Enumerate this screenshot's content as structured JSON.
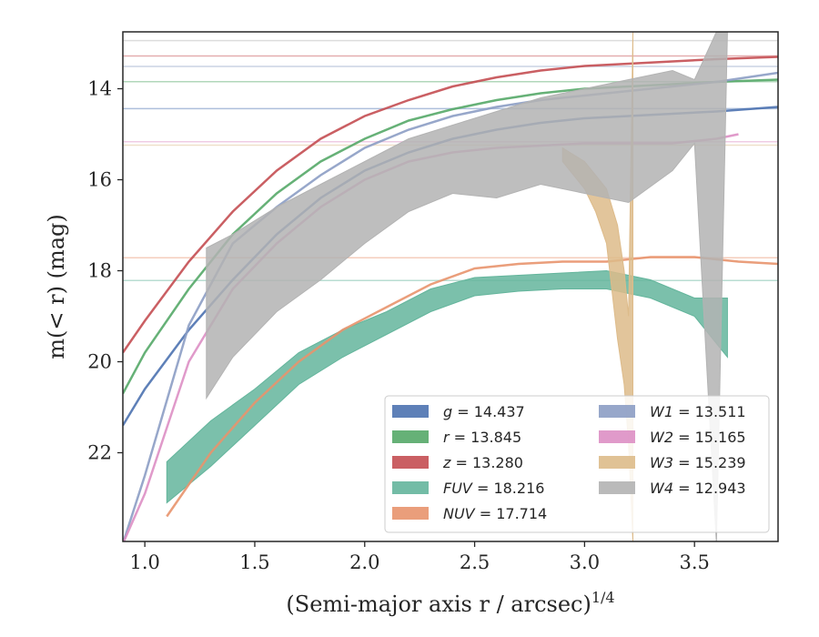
{
  "chart_data": {
    "type": "line",
    "title": "",
    "xlabel": "(Semi-major axis r / arcsec)",
    "xlabel_sup": "1/4",
    "ylabel": "m(< r) (mag)",
    "xlim": [
      0.9,
      3.88
    ],
    "ylim": [
      23.95,
      12.75
    ],
    "y_inverted": true,
    "xticks": [
      1.0,
      1.5,
      2.0,
      2.5,
      3.0,
      3.5
    ],
    "xtick_labels": [
      "1.0",
      "1.5",
      "2.0",
      "2.5",
      "3.0",
      "3.5"
    ],
    "yticks": [
      14,
      16,
      18,
      20,
      22
    ],
    "ytick_labels": [
      "14",
      "16",
      "18",
      "20",
      "22"
    ],
    "grid": false,
    "legend_position": "lower-right",
    "series": [
      {
        "name": "g",
        "label_value": "14.437",
        "color": "#4c72b0",
        "x": [
          0.9,
          1.0,
          1.2,
          1.4,
          1.6,
          1.8,
          2.0,
          2.2,
          2.4,
          2.6,
          2.8,
          3.0,
          3.2,
          3.4,
          3.6,
          3.88
        ],
        "y": [
          21.4,
          20.6,
          19.3,
          18.2,
          17.2,
          16.4,
          15.8,
          15.4,
          15.1,
          14.9,
          14.75,
          14.65,
          14.6,
          14.55,
          14.5,
          14.4
        ],
        "fit": 14.437
      },
      {
        "name": "r",
        "label_value": "13.845",
        "color": "#55a868",
        "x": [
          0.9,
          1.0,
          1.2,
          1.4,
          1.6,
          1.8,
          2.0,
          2.2,
          2.4,
          2.6,
          2.8,
          3.0,
          3.2,
          3.4,
          3.6,
          3.88
        ],
        "y": [
          20.7,
          19.8,
          18.4,
          17.2,
          16.3,
          15.6,
          15.1,
          14.7,
          14.45,
          14.25,
          14.1,
          14.0,
          13.95,
          13.9,
          13.85,
          13.8
        ],
        "fit": 13.845
      },
      {
        "name": "z",
        "label_value": "13.280",
        "color": "#c44e52",
        "x": [
          0.9,
          1.0,
          1.2,
          1.4,
          1.6,
          1.8,
          2.0,
          2.2,
          2.4,
          2.6,
          2.8,
          3.0,
          3.2,
          3.4,
          3.6,
          3.88
        ],
        "y": [
          19.8,
          19.1,
          17.8,
          16.7,
          15.8,
          15.1,
          14.6,
          14.25,
          13.95,
          13.75,
          13.6,
          13.5,
          13.45,
          13.4,
          13.35,
          13.3
        ],
        "fit": 13.28
      },
      {
        "name": "FUV",
        "label_value": "18.216",
        "color": "#64b59c",
        "x": [
          1.1,
          1.3,
          1.5,
          1.7,
          1.9,
          2.1,
          2.3,
          2.5,
          2.7,
          2.9,
          3.1,
          3.3,
          3.5,
          3.65
        ],
        "y_low": [
          23.1,
          22.3,
          21.4,
          20.5,
          19.9,
          19.4,
          18.9,
          18.55,
          18.45,
          18.4,
          18.4,
          18.6,
          19.0,
          19.9
        ],
        "y_high": [
          22.2,
          21.3,
          20.6,
          19.8,
          19.3,
          18.9,
          18.4,
          18.15,
          18.1,
          18.05,
          18.0,
          18.2,
          18.6,
          18.6
        ],
        "fit": 18.216
      },
      {
        "name": "NUV",
        "label_value": "17.714",
        "color": "#e8936d",
        "x": [
          1.1,
          1.3,
          1.5,
          1.7,
          1.9,
          2.1,
          2.3,
          2.5,
          2.7,
          2.9,
          3.1,
          3.3,
          3.5,
          3.7,
          3.88
        ],
        "y": [
          23.4,
          22.0,
          20.9,
          20.0,
          19.3,
          18.8,
          18.3,
          17.95,
          17.85,
          17.8,
          17.8,
          17.7,
          17.7,
          17.8,
          17.85
        ],
        "fit": 17.714
      },
      {
        "name": "W1",
        "label_value": "13.511",
        "color": "#8c9dc4",
        "x": [
          0.9,
          1.0,
          1.2,
          1.4,
          1.6,
          1.8,
          2.0,
          2.2,
          2.4,
          2.6,
          2.8,
          3.0,
          3.2,
          3.4,
          3.6,
          3.88
        ],
        "y": [
          24.0,
          22.5,
          19.2,
          17.4,
          16.6,
          15.9,
          15.3,
          14.9,
          14.6,
          14.4,
          14.25,
          14.15,
          14.05,
          13.95,
          13.85,
          13.65
        ],
        "fit": 13.511
      },
      {
        "name": "W2",
        "label_value": "15.165",
        "color": "#dd8fc4",
        "x": [
          0.9,
          1.0,
          1.2,
          1.4,
          1.6,
          1.8,
          2.0,
          2.2,
          2.4,
          2.6,
          2.8,
          3.0,
          3.2,
          3.4,
          3.6,
          3.7
        ],
        "y": [
          24.0,
          22.9,
          20.0,
          18.4,
          17.4,
          16.6,
          16.0,
          15.6,
          15.4,
          15.3,
          15.25,
          15.2,
          15.2,
          15.2,
          15.1,
          15.0
        ],
        "fit": 15.165
      },
      {
        "name": "W3",
        "label_value": "15.239",
        "color": "#ddbb8a",
        "x": [
          2.9,
          3.0,
          3.05,
          3.1,
          3.15,
          3.18,
          3.2,
          3.22
        ],
        "y_low": [
          15.6,
          16.2,
          16.7,
          17.4,
          19.5,
          20.5,
          21.8,
          23.95
        ],
        "y_high": [
          15.3,
          15.6,
          15.9,
          16.2,
          17.0,
          18.0,
          19.0,
          12.75
        ],
        "fit": 15.239
      },
      {
        "name": "W4",
        "label_value": "12.943",
        "color": "#b3b3b3",
        "x": [
          1.28,
          1.4,
          1.6,
          1.8,
          2.0,
          2.2,
          2.4,
          2.6,
          2.8,
          3.0,
          3.2,
          3.4,
          3.5,
          3.6,
          3.65
        ],
        "y_low": [
          20.8,
          19.9,
          18.9,
          18.2,
          17.4,
          16.7,
          16.3,
          16.4,
          16.1,
          16.3,
          16.5,
          15.8,
          15.2,
          24.0,
          12.75
        ],
        "y_high": [
          17.5,
          17.2,
          16.6,
          16.1,
          15.6,
          15.1,
          14.8,
          14.5,
          14.2,
          14.0,
          13.8,
          13.6,
          13.8,
          12.75,
          12.75
        ],
        "fit": 12.943
      }
    ]
  }
}
